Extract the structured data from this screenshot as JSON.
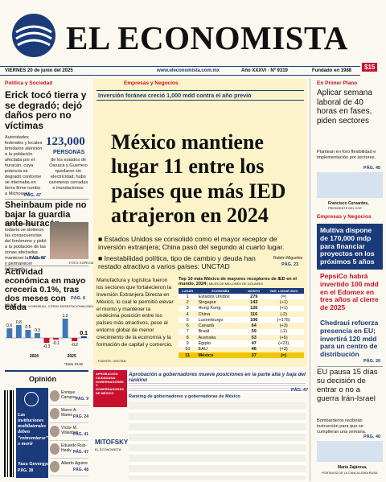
{
  "header": {
    "brand": "EL ECONOMISTA",
    "website": "www.eleconomista.com.mx",
    "date": "VIERNES 20 de junio del 2025",
    "issue": "Año XXXVI · Nº 9319",
    "founded": "Fundado en 1988",
    "price": "$15"
  },
  "politica": {
    "section": "Política y Sociedad",
    "headline": "Erick tocó tierra y se degradó; dejó daños pero no víctimas",
    "bullet": "Autoridades federales y locales brindaron atención a la población afectada por el huracán, cuya potencia se degradó conforme se internaba en tierra firme rumbo a Michoacán.",
    "page": "PÁG. 47",
    "stat": "123,000",
    "stat_unit": "PERSONAS",
    "stat_text": "de los estados de Oaxaca y Guerrero quedaron sin electricidad; hubo carreteras cerradas e inundaciones."
  },
  "sheinbaum": {
    "headline": "Sheinbaum pide no bajar la guardia ante huracán",
    "text": "Indicó que quer todavía se sintieron las consecuencias del fenómeno y pidió a la población de las zonas afectadas mantener la cautela y permanecer informada.",
    "page": "PÁG. 47",
    "credit": "FOTO: ESPECIAL"
  },
  "actividad": {
    "headline": "Actividad económica en mayo crecería 0.1%, tras dos meses con caída",
    "page": "PÁG. 6",
    "chart_title": "IGAE",
    "chart_subtitle": "(VAR. % MENSUAL, CIFRAS DESESTACIONALIZADAS)",
    "values": [
      0.6,
      0.8,
      0.5,
      0.3,
      -0.3,
      -0.1,
      1.2,
      -0.2,
      0.1
    ],
    "years": [
      "2024",
      "2025"
    ],
    "source": "*Dato IOAE"
  },
  "opinion": {
    "section": "Opinión",
    "feature": "Las instituciones multilaterales deben “reinventarse” o morir",
    "feature_author": "Yasu Gevergyan",
    "feature_page": "PÁG. 38",
    "columnists": [
      [
        "Enrique Campos",
        "PÁG. 9"
      ],
      [
        "Marco A. Mares",
        "PÁG. 24"
      ],
      [
        "Víctor M. Villalobos",
        "PÁG. 41"
      ],
      [
        "Eduardo Ruiz-Healy",
        "PÁG. 47"
      ],
      [
        "Alberto Aguirre",
        "PÁG. 48"
      ]
    ]
  },
  "lead": {
    "section": "Empresas y Negocios",
    "kicker": "Inversión foránea creció 1,000 mdd contra el año previo",
    "headline": "México mantiene lugar 11 entre los países que más IED atrajeron en 2024",
    "bullets": [
      "Estados Unidos se consolidó como el mayor receptor de inversión extranjera; China pasó del segundo al cuarto lugar.",
      "Inestabilidad política, tipo de cambio y deuda han restado atractivo a varios países: UNCTAD"
    ],
    "author": "Rubén Migueles",
    "page": "PÁG. 23",
    "body": "Manufactura y logística fueron los sectores que fortalecieron la Inversión Extranjera Directa en México, lo cual le permitió elevar el monto y mantener la undécima posición entre los países más atractivos, pese al entorno global de menor crecimiento de la economía y la formación de capital y comercio.",
    "table_title": "Top 10 más México de mayores receptores de IED en el mundo, 2024",
    "table_unit": "| MILES DE MILLONES DE DÓLARES",
    "columns": [
      "LUGAR",
      "ECONOMÍA",
      "MONTO",
      "VAR. LUGAR 2023"
    ],
    "rows": [
      [
        1,
        "Estados Unidos",
        279,
        "(=)"
      ],
      [
        2,
        "Singapur",
        143,
        "(+1)"
      ],
      [
        3,
        "Hong Kong",
        126,
        "(+1)"
      ],
      [
        4,
        "China",
        116,
        "(-2)"
      ],
      [
        5,
        "Luxemburgo",
        106,
        "(+176)"
      ],
      [
        6,
        "Canadá",
        64,
        "(+3)"
      ],
      [
        7,
        "Brasil",
        59,
        "(-2)"
      ],
      [
        8,
        "Australia",
        53,
        "(+6)"
      ],
      [
        9,
        "Egipto",
        47,
        "(+23)"
      ],
      [
        10,
        "EAU",
        46,
        "(+3)"
      ],
      [
        11,
        "México",
        37,
        "(=)"
      ]
    ],
    "source": "FUENTE: UNCTAD"
  },
  "ranking": {
    "box": "APROBACIÓN CIUDADANA: GOBERNADORES Y GOBERNADORAS DE MÉXICO",
    "headline": "Aprobación a gobernadores mueve posiciones en la parte alta y baja del ranking",
    "title": "Ranking de gobernadores y gobernadoras de México",
    "logo": "MITOFSKY",
    "logo_sub": "EL ECONOMISTA",
    "page": "PÁG. 47"
  },
  "right": {
    "section1": "En Primer Plano",
    "headline1": "Aplicar semana laboral de 40 horas en fases, piden sectores",
    "bullet1": "Plantean en foro flexibilidad e implementación por sectores.",
    "page1": "PÁG. 45",
    "caption1": "Francisco Cervantes,",
    "caption1b": "PRESIDENTE DEL CCE",
    "section2": "Empresas y Negocios",
    "multiva": "Multiva dispone de 170,000 mdp para financiar proyectos en los próximos 5 años",
    "pepsico": "PepsiCo habrá invertido 100 mdd en el Edomex en tres años al cierre de 2025",
    "chedraui": "Chedraui refuerza presencia en EU; invertirá 120 mdd para un centro de distribución",
    "page2": "PÁG. 20",
    "headline3": "EU pausa 15 días su decisión de entrar o no a guerra Irán-Israel",
    "bullet3": "Bombarderos recibirán instrucción para que se cumplieran una semana.",
    "page3": "PÁG. 40",
    "caption3": "María Zajárova,",
    "caption3b": "PORTAVOZ DE LA CANCILLERÍA RUSA"
  }
}
